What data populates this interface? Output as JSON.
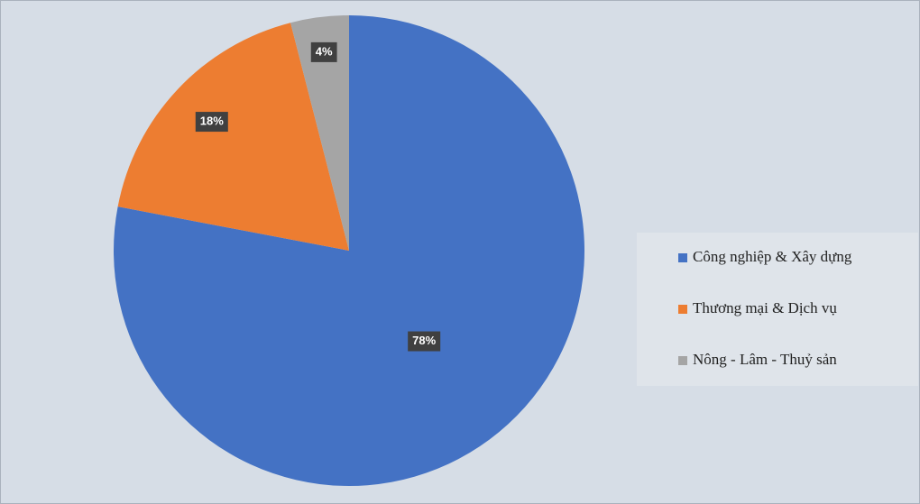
{
  "chart_data": {
    "type": "pie",
    "categories": [
      "Công nghiệp & Xây dựng",
      "Thương mại & Dịch vụ",
      "Nông - Lâm - Thuỷ sản"
    ],
    "values": [
      78,
      18,
      4
    ],
    "value_labels": [
      "78%",
      "18%",
      "4%"
    ],
    "colors": [
      "#4472c4",
      "#ed7d31",
      "#a5a5a5"
    ],
    "legend": "right"
  }
}
